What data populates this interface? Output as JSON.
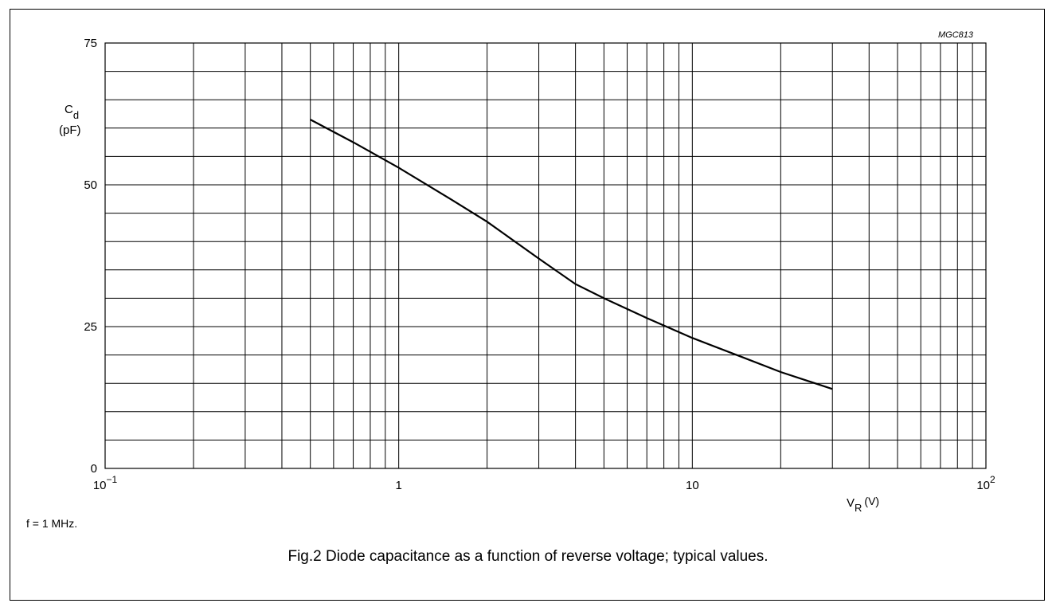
{
  "figure": {
    "id_label": "MGC813",
    "note": "f = 1 MHz.",
    "caption": "Fig.2  Diode capacitance as a function of reverse voltage; typical values."
  },
  "chart_data": {
    "type": "line",
    "xscale": "log",
    "xlim": [
      0.1,
      100
    ],
    "ylim": [
      0,
      75
    ],
    "grid": true,
    "xlabel": {
      "main": "V",
      "sub": "R",
      "unit": "(V)"
    },
    "ylabel": {
      "main": "C",
      "sub": "d",
      "unit": "(pF)"
    },
    "x_ticks": [
      {
        "value": 0.1,
        "base": "10",
        "exp": "−1"
      },
      {
        "value": 1,
        "base": "1",
        "exp": ""
      },
      {
        "value": 10,
        "base": "10",
        "exp": ""
      },
      {
        "value": 100,
        "base": "10",
        "exp": "2"
      }
    ],
    "y_ticks": [
      0,
      25,
      50,
      75
    ],
    "series": [
      {
        "x": [
          0.5,
          0.7,
          1,
          1.5,
          2,
          3,
          4,
          5,
          7,
          10,
          15,
          20,
          30
        ],
        "y": [
          61.5,
          57.5,
          53,
          47.5,
          43.5,
          37,
          32.5,
          30,
          26.5,
          23,
          19.5,
          17,
          14
        ]
      }
    ]
  }
}
